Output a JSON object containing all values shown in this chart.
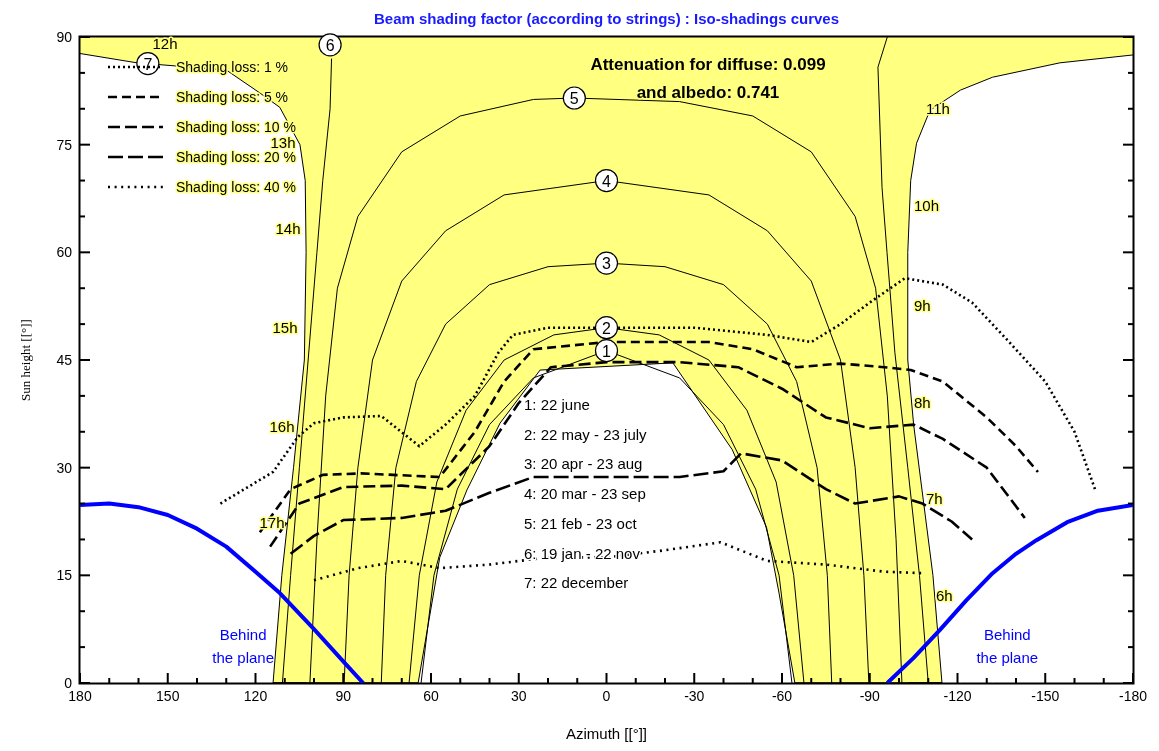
{
  "chart_data": {
    "type": "line",
    "title": "Beam shading factor (according to strings) : Iso-shadings curves",
    "xlabel": "Azimuth [[°]]",
    "ylabel": "Sun height [[°]]",
    "xlim": [
      180,
      -180
    ],
    "ylim": [
      0,
      90
    ],
    "xticks": [
      180,
      {
        "value": 170,
        "label": null
      },
      {
        "value": 160,
        "label": null
      },
      150,
      {
        "value": 140,
        "label": null
      },
      {
        "value": 130,
        "label": null
      },
      120,
      {
        "value": 110,
        "label": null
      },
      {
        "value": 100,
        "label": null
      },
      90,
      {
        "value": 80,
        "label": null
      },
      {
        "value": 70,
        "label": null
      },
      60,
      {
        "value": 50,
        "label": null
      },
      {
        "value": 40,
        "label": null
      },
      30,
      {
        "value": 20,
        "label": null
      },
      {
        "value": 10,
        "label": null
      },
      0,
      {
        "value": -10,
        "label": null
      },
      {
        "value": -20,
        "label": null
      },
      -30,
      {
        "value": -40,
        "label": null
      },
      {
        "value": -50,
        "label": null
      },
      -60,
      {
        "value": -70,
        "label": null
      },
      {
        "value": -80,
        "label": null
      },
      -90,
      {
        "value": -100,
        "label": null
      },
      {
        "value": -110,
        "label": null
      },
      -120,
      {
        "value": -130,
        "label": null
      },
      {
        "value": -140,
        "label": null
      },
      -150,
      {
        "value": -160,
        "label": null
      },
      {
        "value": -170,
        "label": null
      },
      -180
    ],
    "yticks": [
      0,
      {
        "value": 5,
        "label": null
      },
      {
        "value": 10,
        "label": null
      },
      15,
      {
        "value": 20,
        "label": null
      },
      {
        "value": 25,
        "label": null
      },
      30,
      {
        "value": 35,
        "label": null
      },
      {
        "value": 40,
        "label": null
      },
      45,
      {
        "value": 50,
        "label": null
      },
      {
        "value": 55,
        "label": null
      },
      60,
      {
        "value": 65,
        "label": null
      },
      {
        "value": 70,
        "label": null
      },
      75,
      {
        "value": 80,
        "label": null
      },
      {
        "value": 85,
        "label": null
      },
      90
    ],
    "grid": false,
    "legend": "top left",
    "series": [
      {
        "type": "area",
        "color": "#ffff80",
        "x": [
          180,
          -180
        ],
        "values": [
          90,
          90
        ]
      },
      {
        "type": "area",
        "color": "#ffffff",
        "x": [
          180,
          160.5,
          130,
          118.5,
          111.7,
          104.8,
          103,
          102.7,
          103.3,
          107,
          111,
          114,
          64.4,
          57,
          47.7,
          36.4,
          22.7,
          -22.7,
          -43,
          -54.7,
          -59,
          -64.4,
          -114.7,
          -111.6,
          -105,
          -103,
          -103,
          -104,
          -106,
          -110.6,
          -121,
          -132,
          -155,
          -180
        ],
        "values": [
          87.7,
          86.4,
          85.4,
          82.2,
          80.2,
          75,
          70,
          60,
          45,
          30,
          15,
          0,
          0,
          17.5,
          26.9,
          36.2,
          43.6,
          44.6,
          32.5,
          21.7,
          12.5,
          0,
          0,
          15,
          36,
          45,
          60,
          70,
          75.2,
          79.8,
          82.6,
          84.4,
          86.4,
          87.5
        ]
      },
      {
        "color": "#000000",
        "x": [
          63.4,
          59,
          51,
          40,
          25,
          0,
          -25,
          -40,
          -51,
          -59,
          -63.4
        ],
        "values": [
          0,
          15,
          27,
          36,
          42.5,
          46.3,
          42.5,
          36,
          27,
          15,
          0
        ]
      },
      {
        "color": "#000000",
        "x": [
          67.5,
          64,
          58,
          48,
          35,
          18,
          0,
          -18,
          -35,
          -48,
          -58,
          -64,
          -67.5
        ],
        "values": [
          0,
          15,
          28,
          38,
          45,
          48.5,
          49.5,
          48.5,
          45,
          38,
          28,
          15,
          0
        ]
      },
      {
        "color": "#000000",
        "x": [
          77,
          75.5,
          72,
          65,
          55,
          40,
          20,
          0,
          -20,
          -40,
          -55,
          -65,
          -72,
          -75.5,
          -77
        ],
        "values": [
          0,
          15,
          30,
          42,
          50,
          55.5,
          58,
          58.5,
          58,
          55.5,
          50,
          42,
          30,
          15,
          0
        ]
      },
      {
        "color": "#000000",
        "x": [
          89.7,
          88,
          85,
          80,
          70,
          55,
          35,
          0,
          -35,
          -55,
          -70,
          -80,
          -85,
          -88,
          -89.7
        ],
        "values": [
          0,
          15,
          30,
          45,
          56,
          63,
          68,
          70,
          68,
          63,
          56,
          45,
          30,
          15,
          0
        ]
      },
      {
        "color": "#000000",
        "x": [
          101.4,
          99,
          96,
          92,
          85,
          70,
          50,
          25,
          11,
          -25,
          -50,
          -70,
          -85,
          -92,
          -96,
          -99,
          -101
        ],
        "values": [
          0,
          20,
          40,
          55,
          65,
          74,
          79,
          81.3,
          81.5,
          81,
          79,
          74,
          65,
          55,
          40,
          20,
          0
        ]
      },
      {
        "color": "#000000",
        "x": [
          110.8,
          108,
          105,
          102,
          99,
          97,
          94.5,
          94
        ],
        "values": [
          0,
          15,
          30,
          45,
          60,
          70,
          80,
          87
        ]
      },
      {
        "color": "#000000",
        "x": [
          -96,
          -92.8,
          -94.2,
          -95.9,
          -98.6,
          -103,
          -107,
          -110
        ],
        "values": [
          90,
          85.8,
          69,
          60,
          46,
          30,
          15,
          0
        ]
      },
      {
        "name": "Shading loss: 1 %",
        "color": "#000000",
        "line_style": "dotted",
        "x": [
          132,
          114,
          105.5,
          100,
          90,
          77,
          64,
          55,
          45,
          37,
          32,
          20,
          0,
          -30,
          -55,
          -70,
          -80,
          -90,
          -102,
          -115,
          -125,
          -137,
          -150,
          -160,
          -167
        ],
        "values": [
          25,
          29.4,
          34.3,
          36.2,
          37,
          37.2,
          33,
          36,
          40,
          46,
          48.5,
          49.5,
          49.5,
          49.5,
          48.5,
          47.5,
          50,
          53,
          56.4,
          55.5,
          53,
          47.8,
          42,
          35,
          27
        ]
      },
      {
        "name": "Shading loss: 5 %",
        "color": "#000000",
        "line_style": "dashed",
        "x": [
          118.5,
          108,
          97,
          84,
          57,
          45,
          35,
          25,
          0,
          -35,
          -50,
          -65,
          -80,
          -95,
          -104,
          -115,
          -130,
          -140,
          -147.5
        ],
        "values": [
          21,
          27,
          29,
          29.2,
          28.7,
          35,
          42,
          46.5,
          47.5,
          47.5,
          46.5,
          44,
          44.5,
          44,
          43.6,
          42,
          37,
          33,
          29.4
        ]
      },
      {
        "name": "Shading loss: 10 %",
        "color": "#000000",
        "line_style": "dashed",
        "x": [
          115,
          105,
          90,
          70,
          55,
          40,
          30,
          19,
          0,
          -25,
          -45,
          -60,
          -75,
          -90,
          -105,
          -115,
          -130,
          -143
        ],
        "values": [
          19,
          25,
          27.3,
          27.5,
          27,
          33,
          39,
          44,
          44.7,
          44.7,
          44,
          41,
          37,
          35.5,
          36,
          34,
          30,
          23
        ]
      },
      {
        "name": "Shading loss: 20 %",
        "color": "#000000",
        "line_style": "dashed",
        "x": [
          108,
          100,
          90,
          70,
          55,
          40,
          25,
          0,
          -25,
          -40,
          -46,
          -60,
          -75,
          -85,
          -100,
          -108,
          -118,
          -125
        ],
        "values": [
          18,
          20.5,
          22.7,
          23,
          24,
          26.5,
          28.7,
          28.7,
          28.7,
          29.5,
          32,
          31,
          27,
          25,
          26,
          25,
          22.5,
          20
        ]
      },
      {
        "name": "Shading loss: 40 %",
        "color": "#000000",
        "line_style": "dotted",
        "x": [
          100,
          85,
          70,
          57,
          40,
          20,
          0,
          -20,
          -39,
          -55,
          -75,
          -95,
          -108
        ],
        "values": [
          14.3,
          16,
          17,
          16,
          16.5,
          17.5,
          17.5,
          18.5,
          19.6,
          17,
          16.5,
          15.5,
          15.3
        ]
      },
      {
        "name": "Behind the plane",
        "color": "#0000ff",
        "x": [
          180,
          170,
          160,
          150,
          140,
          130,
          120,
          111.6,
          100,
          90,
          83.2
        ],
        "values": [
          24.8,
          25,
          24.5,
          23.4,
          21.5,
          19,
          15.5,
          12.5,
          7.5,
          3,
          0
        ]
      },
      {
        "name": "Behind the plane",
        "color": "#0000ff",
        "x": [
          -96,
          -105,
          -114,
          -123,
          -132,
          -140,
          -147,
          -157.5,
          -168,
          -180
        ],
        "values": [
          0,
          3.5,
          7.4,
          11.5,
          15.3,
          18,
          19.9,
          22.4,
          24,
          24.8
        ]
      }
    ],
    "annotations": [
      "Attenuation for diffuse: 0.099",
      "and albedo: 0.741",
      "1: 22 june",
      "2: 22 may - 23 july",
      "3: 20 apr - 23 aug",
      "4: 20 mar - 23 sep",
      "5: 21 feb - 23 oct",
      "6: 19 jan - 22 nov",
      "7: 22 december",
      "12h",
      "13h",
      "14h",
      "15h",
      "16h",
      "17h",
      "11h",
      "10h",
      "9h",
      "8h",
      "7h",
      "6h",
      {
        "text": "1",
        "x": 0,
        "y": 46.3
      },
      {
        "text": "2",
        "x": 0,
        "y": 49.5
      },
      {
        "text": "3",
        "x": 0,
        "y": 58.5
      },
      {
        "text": "4",
        "x": 0,
        "y": 70
      },
      {
        "text": "5",
        "x": 11,
        "y": 81.5
      },
      {
        "text": "6",
        "x": 94.5,
        "y": 88.9
      },
      {
        "text": "7",
        "x": 156.8,
        "y": 86.3
      }
    ]
  }
}
